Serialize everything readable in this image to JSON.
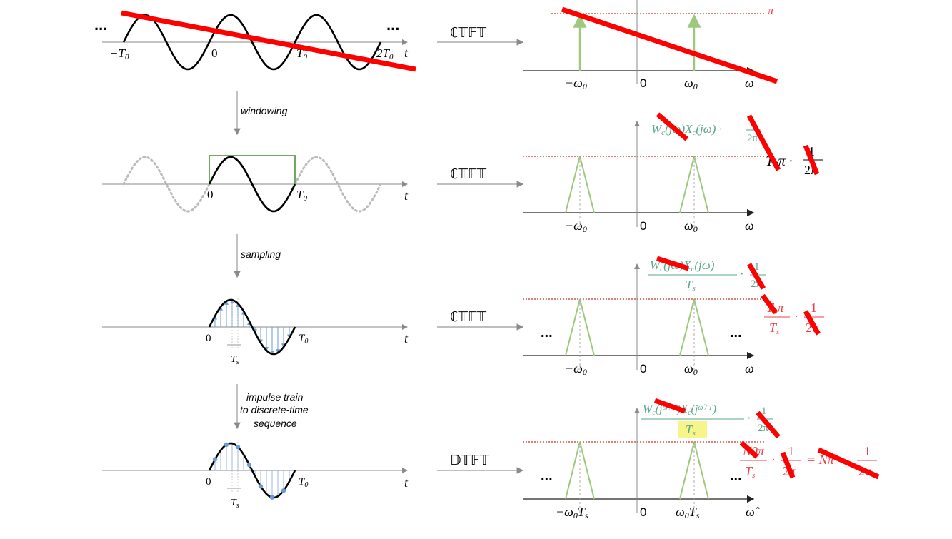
{
  "rows": [
    {
      "left": {
        "labels": [
          "−T",
          "0",
          "T",
          "2T",
          "t"
        ],
        "subs": [
          "0",
          "0",
          "0"
        ],
        "dots": [
          "...",
          "..."
        ]
      },
      "transform": "ℂ𝕋𝔽𝕋",
      "right": {
        "ticks": [
          "−ω",
          "0",
          "ω",
          "ω"
        ],
        "subs": [
          "0",
          "0"
        ],
        "annotation": "π"
      }
    },
    {
      "step": "windowing",
      "left": {
        "labels": [
          "0",
          "T",
          "t"
        ],
        "subs": [
          "0"
        ]
      },
      "transform": "ℂ𝕋𝔽𝕋",
      "right": {
        "ticks": [
          "−ω",
          "0",
          "ω",
          "ω"
        ],
        "subs": [
          "0",
          "0"
        ],
        "formula_top": "W",
        "formula_top_rest": "(jω)X",
        "formula_top_tail": "(jω) ·",
        "formula_top_sub": "c",
        "formula_frac_num": "1",
        "formula_frac_den": "2π",
        "side_formula": "T",
        "side_formula_sub": "0",
        "side_formula_rest": "π ·",
        "side_frac_num": "1",
        "side_frac_den": "2π"
      }
    },
    {
      "step": "sampling",
      "left": {
        "labels": [
          "0",
          "T",
          "t",
          "T"
        ],
        "subs": [
          "0",
          "s"
        ]
      },
      "transform": "ℂ𝕋𝔽𝕋",
      "right": {
        "ticks": [
          "−ω",
          "0",
          "ω",
          "ω"
        ],
        "subs": [
          "0",
          "0"
        ],
        "dots": [
          "...",
          "..."
        ],
        "formula_num": "W",
        "formula_num_rest": "(jω)X",
        "formula_num_tail": "(jω)",
        "formula_den": "T",
        "formula_den_sub": "s",
        "formula_dot": "·",
        "formula_frac_num": "1",
        "formula_frac_den": "2π",
        "side_num": "T",
        "side_num_rest": "π",
        "side_den": "T",
        "side_dot": "·",
        "side_frac_num": "1",
        "side_frac_den": "2π"
      }
    },
    {
      "step_lines": [
        "impulse train",
        "to discrete-time",
        "sequence"
      ],
      "left": {
        "labels": [
          "0",
          "T",
          "t",
          "T"
        ],
        "subs": [
          "0",
          "s"
        ]
      },
      "transform": "𝔻𝕋𝔽𝕋",
      "right": {
        "ticks": [
          "−ω",
          "T",
          "0",
          "ω",
          "T",
          "ω̂"
        ],
        "subs": [
          "0",
          "s",
          "0",
          "s"
        ],
        "dots": [
          "...",
          "..."
        ],
        "formula_num": "W",
        "formula_num_mid": "(j",
        "formula_num_frac": "ω̂ / T",
        "formula_num_rest": ")X",
        "formula_num_mid2": "(j",
        "formula_num_tail": ")",
        "formula_den": "T",
        "formula_den_sub": "s",
        "formula_dot": "·",
        "formula_frac_num": "1",
        "formula_frac_den": "2π",
        "side_num": "N",
        "side_num_rest": "π",
        "side_den": "T",
        "side_den_sub": "s",
        "side_dot": "·",
        "side_frac_num": "1",
        "side_frac_den": "2π",
        "side_eq": "= Nπ ·",
        "side_frac2_num": "1",
        "side_frac2_den": "2π"
      }
    }
  ],
  "colors": {
    "signal": "#000000",
    "window": "#6fab5e",
    "impulse": "#9cc97c",
    "sample": "#6a9bd8",
    "label_green": "#5aa58c",
    "label_red": "#e8424a",
    "strike": "#ff0000",
    "dotted": "#d9534f",
    "highlight": "#f5f58a",
    "axis": "#777777"
  }
}
